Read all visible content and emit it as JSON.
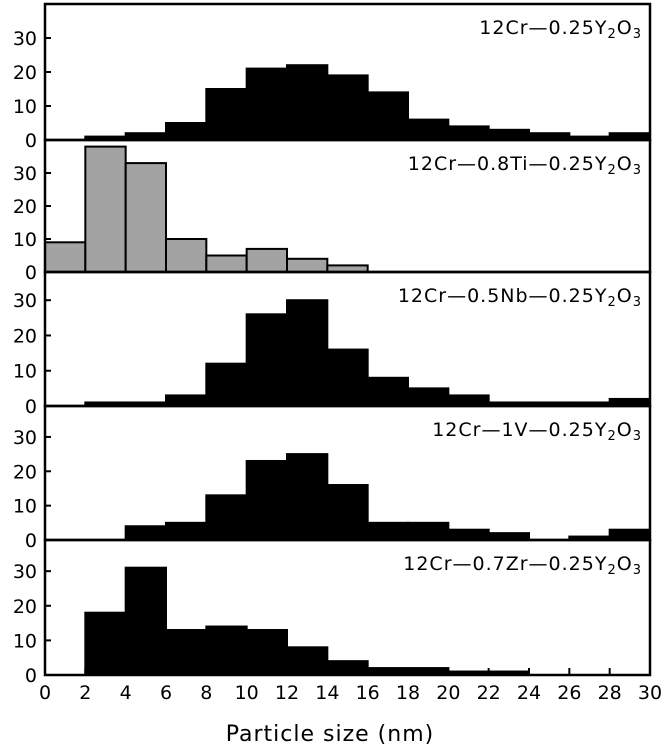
{
  "chart_data": {
    "type": "bar",
    "xlabel": "Particle size (nm)",
    "xlim": [
      0,
      30
    ],
    "x_ticks": [
      "0",
      "2",
      "4",
      "6",
      "8",
      "10",
      "12",
      "14",
      "16",
      "18",
      "20",
      "22",
      "24",
      "26",
      "28",
      "30"
    ],
    "bin_width": 2,
    "bin_starts": [
      0,
      2,
      4,
      6,
      8,
      10,
      12,
      14,
      16,
      18,
      20,
      22,
      24,
      26,
      28
    ],
    "panels": [
      {
        "title_parts": [
          "12Cr—0.25Y",
          "2",
          "O",
          "3"
        ],
        "ylim": [
          0,
          40
        ],
        "y_ticks": [
          "0",
          "10",
          "20",
          "30"
        ],
        "color": "#000000",
        "values": [
          0,
          1,
          2,
          5,
          15,
          21,
          22,
          19,
          14,
          6,
          4,
          3,
          2,
          1,
          2
        ]
      },
      {
        "title_parts": [
          "12Cr—0.8Ti—0.25Y",
          "2",
          "O",
          "3"
        ],
        "ylim": [
          0,
          40
        ],
        "y_ticks": [
          "0",
          "10",
          "20",
          "30"
        ],
        "color": "#a3a3a3",
        "values": [
          9,
          38,
          33,
          10,
          5,
          7,
          4,
          2,
          0,
          0,
          0,
          0,
          0,
          0,
          0
        ]
      },
      {
        "title_parts": [
          "12Cr—0.5Nb—0.25Y",
          "2",
          "O",
          "3"
        ],
        "ylim": [
          0,
          38
        ],
        "y_ticks": [
          "0",
          "10",
          "20",
          "30"
        ],
        "color": "#000000",
        "values": [
          0,
          1,
          1,
          3,
          12,
          26,
          30,
          16,
          8,
          5,
          3,
          1,
          1,
          1,
          2
        ]
      },
      {
        "title_parts": [
          "12Cr—1V—0.25Y",
          "2",
          "O",
          "3"
        ],
        "ylim": [
          0,
          39
        ],
        "y_ticks": [
          "0",
          "10",
          "20",
          "30"
        ],
        "color": "#000000",
        "values": [
          0,
          0,
          4,
          5,
          13,
          23,
          25,
          16,
          5,
          5,
          3,
          2,
          0,
          1,
          3
        ]
      },
      {
        "title_parts": [
          "12Cr—0.7Zr—0.25Y",
          "2",
          "O",
          "3"
        ],
        "ylim": [
          0,
          39
        ],
        "y_ticks": [
          "0",
          "10",
          "20",
          "30"
        ],
        "color": "#000000",
        "values": [
          0,
          18,
          31,
          13,
          14,
          13,
          8,
          4,
          2,
          2,
          1,
          1,
          0,
          0,
          0
        ]
      }
    ]
  }
}
